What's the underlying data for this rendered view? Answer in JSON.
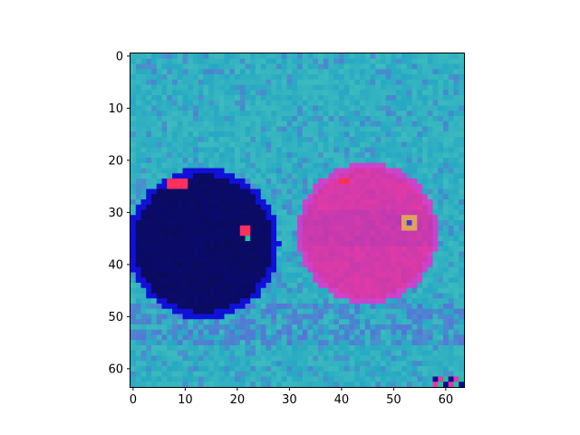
{
  "chart_data": {
    "type": "heatmap",
    "title": "",
    "xlabel": "",
    "ylabel": "",
    "image_size": [
      64,
      64
    ],
    "xlim": [
      -0.5,
      63.5
    ],
    "ylim": [
      63.5,
      -0.5
    ],
    "x_ticks": [
      0,
      10,
      20,
      30,
      40,
      50,
      60
    ],
    "y_ticks": [
      0,
      10,
      20,
      30,
      40,
      50,
      60
    ],
    "x_tick_labels": [
      "0",
      "10",
      "20",
      "30",
      "40",
      "50",
      "60"
    ],
    "y_tick_labels": [
      "0",
      "10",
      "20",
      "30",
      "40",
      "50",
      "60"
    ],
    "grid": false,
    "colors": {
      "background": "#26a7c4",
      "background_alt": "#3fbdbd",
      "shadow": "#5a6fd8",
      "left_sphere": "#0b0b5e",
      "left_sphere_edge": "#1010d8",
      "left_highlight": "#ff3060",
      "right_sphere": "#e03aa6",
      "right_sphere_dark": "#b83ab2",
      "right_highlight": "#ff3050",
      "right_speck": "#3a3ad0"
    },
    "objects": [
      {
        "name": "left sphere",
        "center": [
          13.5,
          36
        ],
        "radius": 14.5
      },
      {
        "name": "right sphere",
        "center": [
          45,
          34
        ],
        "radius": 13.5
      }
    ]
  }
}
